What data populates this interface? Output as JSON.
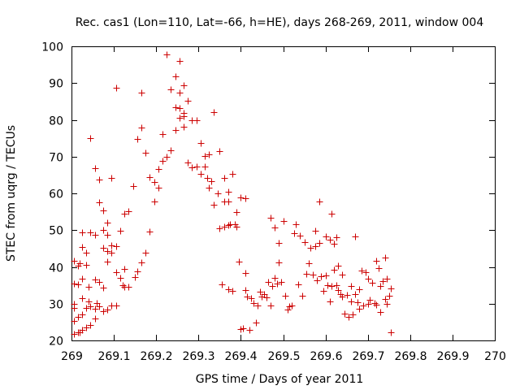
{
  "chart_data": {
    "type": "scatter",
    "title": "Rec. cas1 (Lon=110, Lat=-66, h=HE), days 268-269, 2011, window 004",
    "xlabel": "GPS time / Days of year 2011",
    "ylabel": "STEC from uqrg / TECUs",
    "xlim": [
      269,
      270
    ],
    "ylim": [
      20,
      100
    ],
    "xticks": [
      "269",
      "269.1",
      "269.2",
      "269.3",
      "269.4",
      "269.5",
      "269.6",
      "269.7",
      "269.8",
      "269.9",
      "270"
    ],
    "yticks": [
      "20",
      "30",
      "40",
      "50",
      "60",
      "70",
      "80",
      "90",
      "100"
    ],
    "grid": false,
    "legend": "none",
    "marker": "plus",
    "color": "#cc0000",
    "series": [
      {
        "points": [
          [
            269.005,
            41.6
          ],
          [
            269.005,
            35.4
          ],
          [
            269.005,
            30.0
          ],
          [
            269.005,
            28.9
          ],
          [
            269.005,
            25.3
          ],
          [
            269.005,
            21.7
          ],
          [
            269.015,
            40.4
          ],
          [
            269.015,
            35.2
          ],
          [
            269.015,
            26.3
          ],
          [
            269.015,
            22.1
          ],
          [
            269.02,
            41.1
          ],
          [
            269.02,
            22.2
          ],
          [
            269.025,
            49.4
          ],
          [
            269.025,
            45.4
          ],
          [
            269.025,
            36.8
          ],
          [
            269.025,
            31.5
          ],
          [
            269.025,
            27.1
          ],
          [
            269.025,
            22.9
          ],
          [
            269.035,
            43.8
          ],
          [
            269.035,
            40.6
          ],
          [
            269.035,
            28.8
          ],
          [
            269.035,
            23.5
          ],
          [
            269.04,
            34.5
          ],
          [
            269.04,
            30.6
          ],
          [
            269.045,
            75.1
          ],
          [
            269.045,
            49.5
          ],
          [
            269.045,
            29.2
          ],
          [
            269.045,
            24.2
          ],
          [
            269.055,
            66.9
          ],
          [
            269.055,
            48.8
          ],
          [
            269.055,
            36.6
          ],
          [
            269.055,
            28.7
          ],
          [
            269.055,
            26.0
          ],
          [
            269.06,
            30.1
          ],
          [
            269.065,
            63.8
          ],
          [
            269.065,
            57.5
          ],
          [
            269.065,
            35.9
          ],
          [
            269.065,
            29.2
          ],
          [
            269.075,
            55.3
          ],
          [
            269.075,
            50.1
          ],
          [
            269.075,
            45.3
          ],
          [
            269.075,
            34.3
          ],
          [
            269.075,
            28.0
          ],
          [
            269.085,
            52.1
          ],
          [
            269.085,
            48.7
          ],
          [
            269.085,
            44.4
          ],
          [
            269.085,
            41.5
          ],
          [
            269.085,
            28.5
          ],
          [
            269.095,
            64.3
          ],
          [
            269.095,
            45.9
          ],
          [
            269.095,
            43.8
          ],
          [
            269.095,
            29.4
          ],
          [
            269.105,
            88.7
          ],
          [
            269.105,
            45.6
          ],
          [
            269.105,
            38.6
          ],
          [
            269.105,
            29.5
          ],
          [
            269.115,
            49.9
          ],
          [
            269.115,
            37.1
          ],
          [
            269.12,
            35.1
          ],
          [
            269.125,
            54.4
          ],
          [
            269.125,
            39.4
          ],
          [
            269.125,
            34.6
          ],
          [
            269.135,
            55.1
          ],
          [
            269.135,
            34.6
          ],
          [
            269.145,
            62.0
          ],
          [
            269.15,
            37.3
          ],
          [
            269.155,
            74.7
          ],
          [
            269.155,
            38.8
          ],
          [
            269.165,
            87.3
          ],
          [
            269.165,
            77.8
          ],
          [
            269.165,
            41.3
          ],
          [
            269.175,
            71.0
          ],
          [
            269.175,
            43.8
          ],
          [
            269.185,
            64.4
          ],
          [
            269.185,
            49.7
          ],
          [
            269.195,
            63.1
          ],
          [
            269.195,
            57.8
          ],
          [
            269.205,
            66.6
          ],
          [
            269.205,
            61.5
          ],
          [
            269.215,
            76.2
          ],
          [
            269.215,
            68.8
          ],
          [
            269.225,
            97.7
          ],
          [
            269.225,
            70.0
          ],
          [
            269.235,
            88.2
          ],
          [
            269.235,
            71.7
          ],
          [
            269.245,
            91.9
          ],
          [
            269.245,
            83.5
          ],
          [
            269.245,
            77.3
          ],
          [
            269.255,
            96.0
          ],
          [
            269.255,
            87.5
          ],
          [
            269.255,
            83.1
          ],
          [
            269.255,
            80.5
          ],
          [
            269.265,
            89.3
          ],
          [
            269.265,
            81.9
          ],
          [
            269.265,
            81.0
          ],
          [
            269.265,
            78.1
          ],
          [
            269.275,
            85.3
          ],
          [
            269.275,
            68.3
          ],
          [
            269.285,
            79.8
          ],
          [
            269.285,
            67.1
          ],
          [
            269.295,
            80.0
          ],
          [
            269.295,
            67.2
          ],
          [
            269.305,
            73.8
          ],
          [
            269.305,
            65.4
          ],
          [
            269.315,
            70.2
          ],
          [
            269.315,
            67.3
          ],
          [
            269.32,
            64.3
          ],
          [
            269.325,
            70.7
          ],
          [
            269.325,
            61.5
          ],
          [
            269.33,
            63.4
          ],
          [
            269.335,
            82.1
          ],
          [
            269.335,
            56.9
          ],
          [
            269.345,
            60.1
          ],
          [
            269.35,
            71.4
          ],
          [
            269.35,
            50.6
          ],
          [
            269.355,
            35.2
          ],
          [
            269.36,
            64.2
          ],
          [
            269.36,
            57.8
          ],
          [
            269.36,
            50.9
          ],
          [
            269.37,
            60.4
          ],
          [
            269.37,
            57.9
          ],
          [
            269.37,
            51.4
          ],
          [
            269.37,
            33.9
          ],
          [
            269.375,
            51.7
          ],
          [
            269.38,
            65.2
          ],
          [
            269.38,
            33.5
          ],
          [
            269.385,
            51.6
          ],
          [
            269.39,
            55.0
          ],
          [
            269.39,
            51.0
          ],
          [
            269.395,
            41.4
          ],
          [
            269.4,
            23.2
          ],
          [
            269.4,
            58.8
          ],
          [
            269.405,
            23.3
          ],
          [
            269.41,
            58.6
          ],
          [
            269.41,
            38.4
          ],
          [
            269.41,
            33.6
          ],
          [
            269.415,
            32.0
          ],
          [
            269.42,
            22.8
          ],
          [
            269.425,
            31.5
          ],
          [
            269.43,
            30.2
          ],
          [
            269.435,
            24.9
          ],
          [
            269.44,
            29.5
          ],
          [
            269.445,
            33.3
          ],
          [
            269.45,
            31.9
          ],
          [
            269.455,
            32.6
          ],
          [
            269.46,
            31.8
          ],
          [
            269.465,
            36.0
          ],
          [
            269.47,
            53.4
          ],
          [
            269.47,
            29.4
          ],
          [
            269.475,
            34.7
          ],
          [
            269.48,
            50.7
          ],
          [
            269.48,
            37.1
          ],
          [
            269.485,
            35.5
          ],
          [
            269.49,
            46.6
          ],
          [
            269.49,
            41.3
          ],
          [
            269.495,
            36.0
          ],
          [
            269.5,
            52.5
          ],
          [
            269.505,
            32.2
          ],
          [
            269.51,
            28.5
          ],
          [
            269.515,
            29.2
          ],
          [
            269.52,
            29.5
          ],
          [
            269.525,
            49.2
          ],
          [
            269.53,
            51.6
          ],
          [
            269.535,
            35.3
          ],
          [
            269.54,
            48.4
          ],
          [
            269.545,
            32.2
          ],
          [
            269.55,
            46.7
          ],
          [
            269.555,
            38.1
          ],
          [
            269.56,
            41.1
          ],
          [
            269.565,
            45.1
          ],
          [
            269.57,
            38.0
          ],
          [
            269.575,
            49.9
          ],
          [
            269.575,
            45.6
          ],
          [
            269.58,
            36.4
          ],
          [
            269.585,
            57.9
          ],
          [
            269.585,
            46.6
          ],
          [
            269.59,
            37.4
          ],
          [
            269.595,
            33.5
          ],
          [
            269.6,
            48.3
          ],
          [
            269.6,
            37.6
          ],
          [
            269.605,
            35.1
          ],
          [
            269.61,
            47.3
          ],
          [
            269.61,
            30.5
          ],
          [
            269.615,
            34.7
          ],
          [
            269.615,
            54.4
          ],
          [
            269.62,
            46.2
          ],
          [
            269.62,
            39.2
          ],
          [
            269.625,
            48.0
          ],
          [
            269.625,
            35.1
          ],
          [
            269.63,
            40.4
          ],
          [
            269.63,
            33.7
          ],
          [
            269.635,
            32.6
          ],
          [
            269.64,
            37.9
          ],
          [
            269.64,
            31.9
          ],
          [
            269.645,
            27.2
          ],
          [
            269.65,
            32.3
          ],
          [
            269.655,
            26.3
          ],
          [
            269.66,
            30.6
          ],
          [
            269.66,
            34.7
          ],
          [
            269.665,
            27.0
          ],
          [
            269.67,
            48.3
          ],
          [
            269.67,
            32.5
          ],
          [
            269.675,
            30.4
          ],
          [
            269.68,
            33.9
          ],
          [
            269.68,
            28.7
          ],
          [
            269.685,
            39.0
          ],
          [
            269.69,
            29.6
          ],
          [
            269.695,
            38.6
          ],
          [
            269.7,
            36.7
          ],
          [
            269.7,
            29.9
          ],
          [
            269.705,
            31.1
          ],
          [
            269.71,
            35.8
          ],
          [
            269.715,
            30.2
          ],
          [
            269.72,
            41.7
          ],
          [
            269.72,
            29.7
          ],
          [
            269.725,
            39.6
          ],
          [
            269.73,
            34.7
          ],
          [
            269.73,
            27.8
          ],
          [
            269.735,
            36.1
          ],
          [
            269.74,
            42.5
          ],
          [
            269.74,
            31.3
          ],
          [
            269.745,
            29.9
          ],
          [
            269.745,
            36.7
          ],
          [
            269.75,
            32.2
          ],
          [
            269.755,
            34.2
          ],
          [
            269.755,
            22.1
          ]
        ]
      }
    ]
  }
}
